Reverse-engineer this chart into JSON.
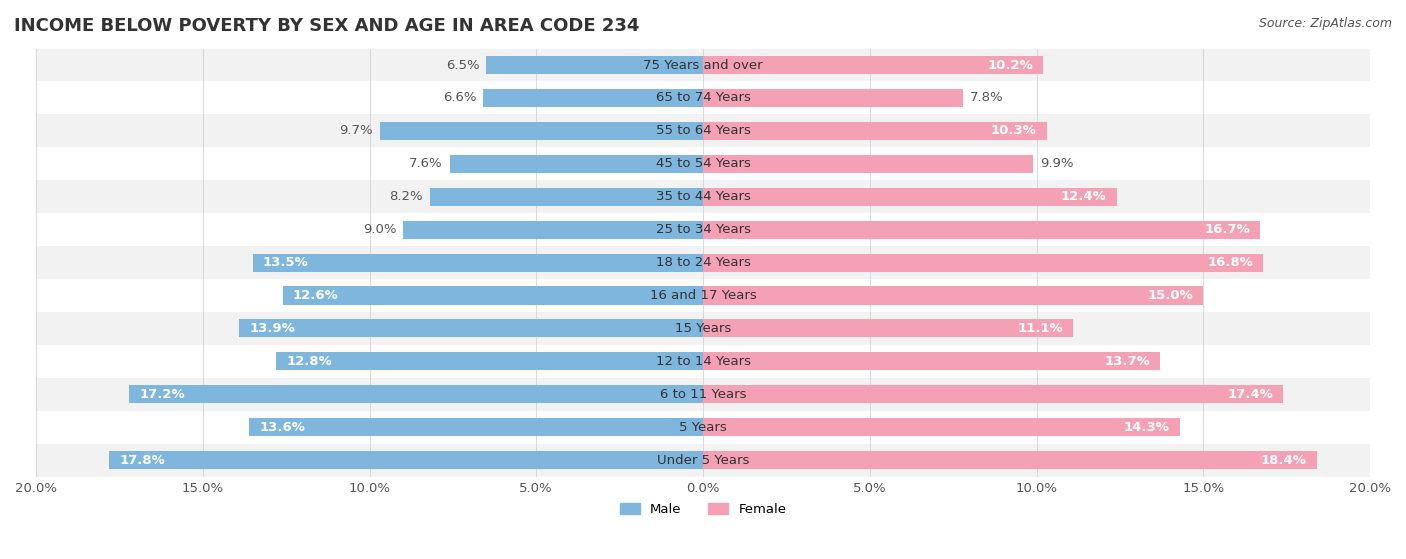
{
  "title": "INCOME BELOW POVERTY BY SEX AND AGE IN AREA CODE 234",
  "source": "Source: ZipAtlas.com",
  "categories": [
    "Under 5 Years",
    "5 Years",
    "6 to 11 Years",
    "12 to 14 Years",
    "15 Years",
    "16 and 17 Years",
    "18 to 24 Years",
    "25 to 34 Years",
    "35 to 44 Years",
    "45 to 54 Years",
    "55 to 64 Years",
    "65 to 74 Years",
    "75 Years and over"
  ],
  "male_values": [
    17.8,
    13.6,
    17.2,
    12.8,
    13.9,
    12.6,
    13.5,
    9.0,
    8.2,
    7.6,
    9.7,
    6.6,
    6.5
  ],
  "female_values": [
    18.4,
    14.3,
    17.4,
    13.7,
    11.1,
    15.0,
    16.8,
    16.7,
    12.4,
    9.9,
    10.3,
    7.8,
    10.2
  ],
  "male_color": "#7eb6de",
  "female_color": "#f4a0b5",
  "axis_max": 20.0,
  "row_odd_color": "#f2f2f2",
  "row_even_color": "#ffffff",
  "bar_height": 0.55,
  "label_fontsize": 9.5,
  "title_fontsize": 13,
  "source_fontsize": 9,
  "tick_fontsize": 9.5,
  "category_fontsize": 9.5
}
